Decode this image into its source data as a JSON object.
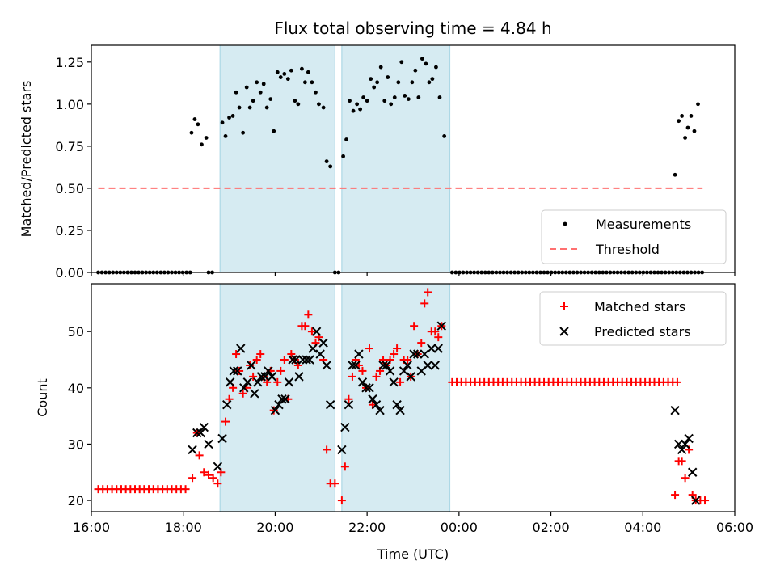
{
  "figure_title": "Flux total observing time = 4.84 h",
  "colors": {
    "shade": "#add8e6",
    "measurement": "#000000",
    "threshold": "#ff7070",
    "matched": "#ff0000",
    "predicted": "#000000",
    "axis": "#000000",
    "legend_border": "#cccccc"
  },
  "chart_data": [
    {
      "type": "scatter",
      "panel": "ratio",
      "title": "Flux total observing time = 4.84 h",
      "xlabel": "",
      "ylabel": "Matched/Predicted stars",
      "xlim": [
        16.0,
        30.0
      ],
      "ylim": [
        0.0,
        1.35
      ],
      "xticks": [
        16,
        18,
        20,
        22,
        24,
        26,
        28,
        30
      ],
      "yticks": [
        0.0,
        0.25,
        0.5,
        0.75,
        1.0,
        1.25
      ],
      "ytick_labels": [
        "0.00",
        "0.25",
        "0.50",
        "0.75",
        "1.00",
        "1.25"
      ],
      "shaded_intervals": [
        [
          18.8,
          21.3
        ],
        [
          21.45,
          23.8
        ]
      ],
      "legend_position": "lower-right",
      "legend": [
        "Measurements",
        "Threshold"
      ],
      "threshold": {
        "name": "Threshold",
        "x": [
          16.15,
          29.3
        ],
        "y": 0.5
      },
      "series": [
        {
          "name": "Measurements",
          "zero_start": 16.15,
          "zero_end": 18.15,
          "zero_step": 0.08,
          "zero_runs": [
            [
              16.15,
              18.15
            ],
            [
              18.55,
              18.7
            ],
            [
              21.3,
              21.4
            ],
            [
              23.85,
              29.3
            ]
          ],
          "points": [
            [
              18.18,
              0.83
            ],
            [
              18.25,
              0.91
            ],
            [
              18.32,
              0.88
            ],
            [
              18.4,
              0.76
            ],
            [
              18.5,
              0.8
            ],
            [
              18.85,
              0.89
            ],
            [
              18.92,
              0.81
            ],
            [
              19.0,
              0.92
            ],
            [
              19.08,
              0.93
            ],
            [
              19.15,
              1.07
            ],
            [
              19.22,
              0.98
            ],
            [
              19.3,
              0.83
            ],
            [
              19.38,
              1.1
            ],
            [
              19.45,
              0.98
            ],
            [
              19.52,
              1.02
            ],
            [
              19.6,
              1.13
            ],
            [
              19.68,
              1.07
            ],
            [
              19.75,
              1.12
            ],
            [
              19.82,
              0.98
            ],
            [
              19.9,
              1.03
            ],
            [
              19.97,
              0.84
            ],
            [
              20.05,
              1.19
            ],
            [
              20.12,
              1.16
            ],
            [
              20.2,
              1.18
            ],
            [
              20.28,
              1.15
            ],
            [
              20.35,
              1.2
            ],
            [
              20.43,
              1.02
            ],
            [
              20.5,
              1.0
            ],
            [
              20.58,
              1.21
            ],
            [
              20.65,
              1.13
            ],
            [
              20.72,
              1.19
            ],
            [
              20.8,
              1.13
            ],
            [
              20.88,
              1.07
            ],
            [
              20.95,
              1.0
            ],
            [
              21.05,
              0.98
            ],
            [
              21.12,
              0.66
            ],
            [
              21.2,
              0.63
            ],
            [
              21.48,
              0.69
            ],
            [
              21.55,
              0.79
            ],
            [
              21.62,
              1.02
            ],
            [
              21.7,
              0.96
            ],
            [
              21.78,
              1.0
            ],
            [
              21.85,
              0.97
            ],
            [
              21.92,
              1.04
            ],
            [
              22.0,
              1.02
            ],
            [
              22.08,
              1.15
            ],
            [
              22.15,
              1.1
            ],
            [
              22.22,
              1.13
            ],
            [
              22.3,
              1.22
            ],
            [
              22.38,
              1.02
            ],
            [
              22.45,
              1.16
            ],
            [
              22.52,
              1.0
            ],
            [
              22.6,
              1.04
            ],
            [
              22.68,
              1.13
            ],
            [
              22.75,
              1.25
            ],
            [
              22.82,
              1.05
            ],
            [
              22.9,
              1.03
            ],
            [
              22.98,
              1.13
            ],
            [
              23.05,
              1.2
            ],
            [
              23.12,
              1.04
            ],
            [
              23.2,
              1.27
            ],
            [
              23.28,
              1.24
            ],
            [
              23.35,
              1.13
            ],
            [
              23.42,
              1.15
            ],
            [
              23.5,
              1.22
            ],
            [
              23.58,
              1.04
            ],
            [
              23.68,
              0.81
            ],
            [
              28.7,
              0.58
            ],
            [
              28.78,
              0.9
            ],
            [
              28.85,
              0.93
            ],
            [
              28.92,
              0.8
            ],
            [
              28.98,
              0.86
            ],
            [
              29.05,
              0.93
            ],
            [
              29.12,
              0.84
            ],
            [
              29.2,
              1.0
            ]
          ]
        }
      ]
    },
    {
      "type": "scatter",
      "panel": "counts",
      "xlabel": "Time (UTC)",
      "ylabel": "Count",
      "xlim": [
        16.0,
        30.0
      ],
      "ylim": [
        18.0,
        58.5
      ],
      "xticks": [
        16,
        18,
        20,
        22,
        24,
        26,
        28,
        30
      ],
      "xtick_labels": [
        "16:00",
        "18:00",
        "20:00",
        "22:00",
        "00:00",
        "02:00",
        "04:00",
        "06:00"
      ],
      "yticks": [
        20,
        30,
        40,
        50
      ],
      "ytick_labels": [
        "20",
        "30",
        "40",
        "50"
      ],
      "shaded_intervals": [
        [
          18.8,
          21.3
        ],
        [
          21.45,
          23.8
        ]
      ],
      "legend_position": "upper-right",
      "legend": [
        "Matched stars",
        "Predicted stars"
      ],
      "series": [
        {
          "name": "Matched stars",
          "marker": "plus",
          "runs": [
            {
              "from": 16.15,
              "to": 18.1,
              "step": 0.1,
              "y": 22
            },
            {
              "from": 23.85,
              "to": 28.75,
              "step": 0.1,
              "y": 41
            }
          ],
          "points": [
            [
              18.2,
              24
            ],
            [
              18.3,
              32
            ],
            [
              18.35,
              28
            ],
            [
              18.45,
              25
            ],
            [
              18.55,
              24.5
            ],
            [
              18.65,
              24
            ],
            [
              18.75,
              23
            ],
            [
              18.82,
              25
            ],
            [
              18.92,
              34
            ],
            [
              19.0,
              38
            ],
            [
              19.08,
              40
            ],
            [
              19.15,
              46
            ],
            [
              19.22,
              43
            ],
            [
              19.3,
              39
            ],
            [
              19.38,
              40
            ],
            [
              19.45,
              44
            ],
            [
              19.52,
              42
            ],
            [
              19.6,
              45
            ],
            [
              19.68,
              46
            ],
            [
              19.75,
              42
            ],
            [
              19.82,
              41
            ],
            [
              19.9,
              43
            ],
            [
              19.97,
              36
            ],
            [
              20.05,
              41
            ],
            [
              20.12,
              43
            ],
            [
              20.2,
              45
            ],
            [
              20.28,
              38
            ],
            [
              20.35,
              46
            ],
            [
              20.43,
              45
            ],
            [
              20.5,
              44
            ],
            [
              20.58,
              51
            ],
            [
              20.65,
              51
            ],
            [
              20.72,
              53
            ],
            [
              20.8,
              50
            ],
            [
              20.88,
              48
            ],
            [
              20.95,
              49
            ],
            [
              21.05,
              45
            ],
            [
              21.12,
              29
            ],
            [
              21.2,
              23
            ],
            [
              21.3,
              23
            ],
            [
              21.45,
              20
            ],
            [
              21.52,
              26
            ],
            [
              21.6,
              38
            ],
            [
              21.68,
              42
            ],
            [
              21.75,
              45
            ],
            [
              21.82,
              44
            ],
            [
              21.9,
              43
            ],
            [
              21.98,
              40
            ],
            [
              22.05,
              47
            ],
            [
              22.12,
              37
            ],
            [
              22.2,
              42
            ],
            [
              22.28,
              43
            ],
            [
              22.35,
              45
            ],
            [
              22.42,
              44
            ],
            [
              22.5,
              45
            ],
            [
              22.58,
              46
            ],
            [
              22.65,
              47
            ],
            [
              22.72,
              41
            ],
            [
              22.8,
              45
            ],
            [
              22.88,
              45
            ],
            [
              22.95,
              42
            ],
            [
              23.02,
              51
            ],
            [
              23.1,
              46
            ],
            [
              23.18,
              48
            ],
            [
              23.25,
              55
            ],
            [
              23.32,
              57
            ],
            [
              23.4,
              50
            ],
            [
              23.48,
              50
            ],
            [
              23.55,
              49
            ],
            [
              23.62,
              51
            ],
            [
              28.7,
              21
            ],
            [
              28.78,
              27
            ],
            [
              28.85,
              27
            ],
            [
              28.92,
              24
            ],
            [
              29.0,
              29
            ],
            [
              29.08,
              21
            ],
            [
              29.15,
              20
            ],
            [
              29.25,
              20
            ],
            [
              29.35,
              20
            ]
          ]
        },
        {
          "name": "Predicted stars",
          "marker": "x",
          "points": [
            [
              18.2,
              29
            ],
            [
              18.3,
              32
            ],
            [
              18.38,
              32
            ],
            [
              18.45,
              33
            ],
            [
              18.55,
              30
            ],
            [
              18.75,
              26
            ],
            [
              18.85,
              31
            ],
            [
              18.95,
              37
            ],
            [
              19.02,
              41
            ],
            [
              19.1,
              43
            ],
            [
              19.18,
              43
            ],
            [
              19.25,
              47
            ],
            [
              19.32,
              40
            ],
            [
              19.4,
              41
            ],
            [
              19.48,
              44
            ],
            [
              19.55,
              39
            ],
            [
              19.62,
              41
            ],
            [
              19.7,
              42
            ],
            [
              19.78,
              42
            ],
            [
              19.85,
              43
            ],
            [
              19.93,
              42
            ],
            [
              20.0,
              36
            ],
            [
              20.08,
              37
            ],
            [
              20.15,
              38
            ],
            [
              20.22,
              38
            ],
            [
              20.3,
              41
            ],
            [
              20.38,
              45
            ],
            [
              20.45,
              45
            ],
            [
              20.52,
              42
            ],
            [
              20.6,
              45
            ],
            [
              20.68,
              45
            ],
            [
              20.75,
              45
            ],
            [
              20.82,
              47
            ],
            [
              20.9,
              50
            ],
            [
              20.98,
              46
            ],
            [
              21.05,
              48
            ],
            [
              21.12,
              44
            ],
            [
              21.2,
              37
            ],
            [
              21.45,
              29
            ],
            [
              21.52,
              33
            ],
            [
              21.6,
              37
            ],
            [
              21.68,
              44
            ],
            [
              21.75,
              44
            ],
            [
              21.82,
              46
            ],
            [
              21.9,
              41
            ],
            [
              21.98,
              40
            ],
            [
              22.05,
              40
            ],
            [
              22.12,
              38
            ],
            [
              22.2,
              37
            ],
            [
              22.28,
              36
            ],
            [
              22.35,
              44
            ],
            [
              22.42,
              44
            ],
            [
              22.5,
              43
            ],
            [
              22.58,
              41
            ],
            [
              22.65,
              37
            ],
            [
              22.72,
              36
            ],
            [
              22.8,
              43
            ],
            [
              22.88,
              44
            ],
            [
              22.95,
              42
            ],
            [
              23.02,
              46
            ],
            [
              23.1,
              46
            ],
            [
              23.18,
              43
            ],
            [
              23.25,
              46
            ],
            [
              23.32,
              44
            ],
            [
              23.4,
              47
            ],
            [
              23.48,
              44
            ],
            [
              23.55,
              47
            ],
            [
              23.62,
              51
            ],
            [
              28.7,
              36
            ],
            [
              28.78,
              30
            ],
            [
              28.85,
              29
            ],
            [
              28.92,
              30
            ],
            [
              29.0,
              31
            ],
            [
              29.08,
              25
            ],
            [
              29.15,
              20
            ]
          ]
        }
      ]
    }
  ]
}
